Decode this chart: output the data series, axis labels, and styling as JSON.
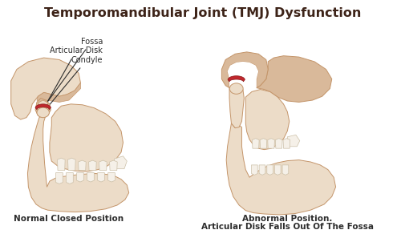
{
  "title": "Temporomandibular Joint (TMJ) Dysfunction",
  "title_color": "#3d2318",
  "title_fontsize": 11.5,
  "bg_color": "#ffffff",
  "skin_light": "#ecdcc8",
  "skin_mid": "#d9b99a",
  "skin_dark": "#c4956a",
  "skin_shadow": "#b8856a",
  "red_color": "#c0272d",
  "red_dark": "#8b1a1a",
  "tooth_color": "#f5f0e8",
  "tooth_outline": "#ccc0a8",
  "label_color": "#2d2d2d",
  "label_fontsize": 7.0,
  "caption_left": "Normal Closed Position",
  "caption_right_1": "Abnormal Position.",
  "caption_right_2": "Articular Disk Falls Out Of The Fossa",
  "caption_fontsize": 7.5,
  "line_color": "#2d2d2d"
}
